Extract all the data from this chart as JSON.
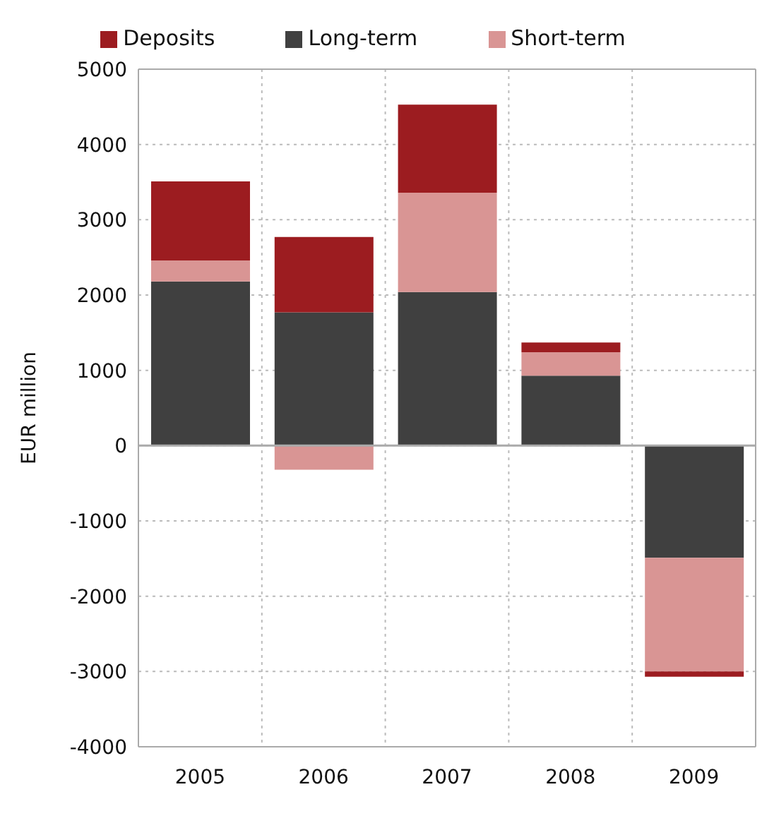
{
  "chart_data": {
    "type": "bar",
    "stacked": true,
    "ylabel": "EUR million",
    "categories": [
      "2005",
      "2006",
      "2007",
      "2008",
      "2009"
    ],
    "series": [
      {
        "name": "Long-term",
        "color": "#404040",
        "values": [
          2180,
          1770,
          2040,
          930,
          -1490
        ]
      },
      {
        "name": "Short-term",
        "color": "#d99594",
        "values": [
          280,
          -320,
          1320,
          310,
          -1510
        ]
      },
      {
        "name": "Deposits",
        "color": "#9c1c20",
        "values": [
          1050,
          1000,
          1170,
          130,
          -70
        ]
      }
    ],
    "ylim": [
      -4000,
      5000
    ],
    "yticks": [
      -4000,
      -3000,
      -2000,
      -1000,
      0,
      1000,
      2000,
      3000,
      4000,
      5000
    ],
    "grid": true,
    "legend": "top"
  }
}
